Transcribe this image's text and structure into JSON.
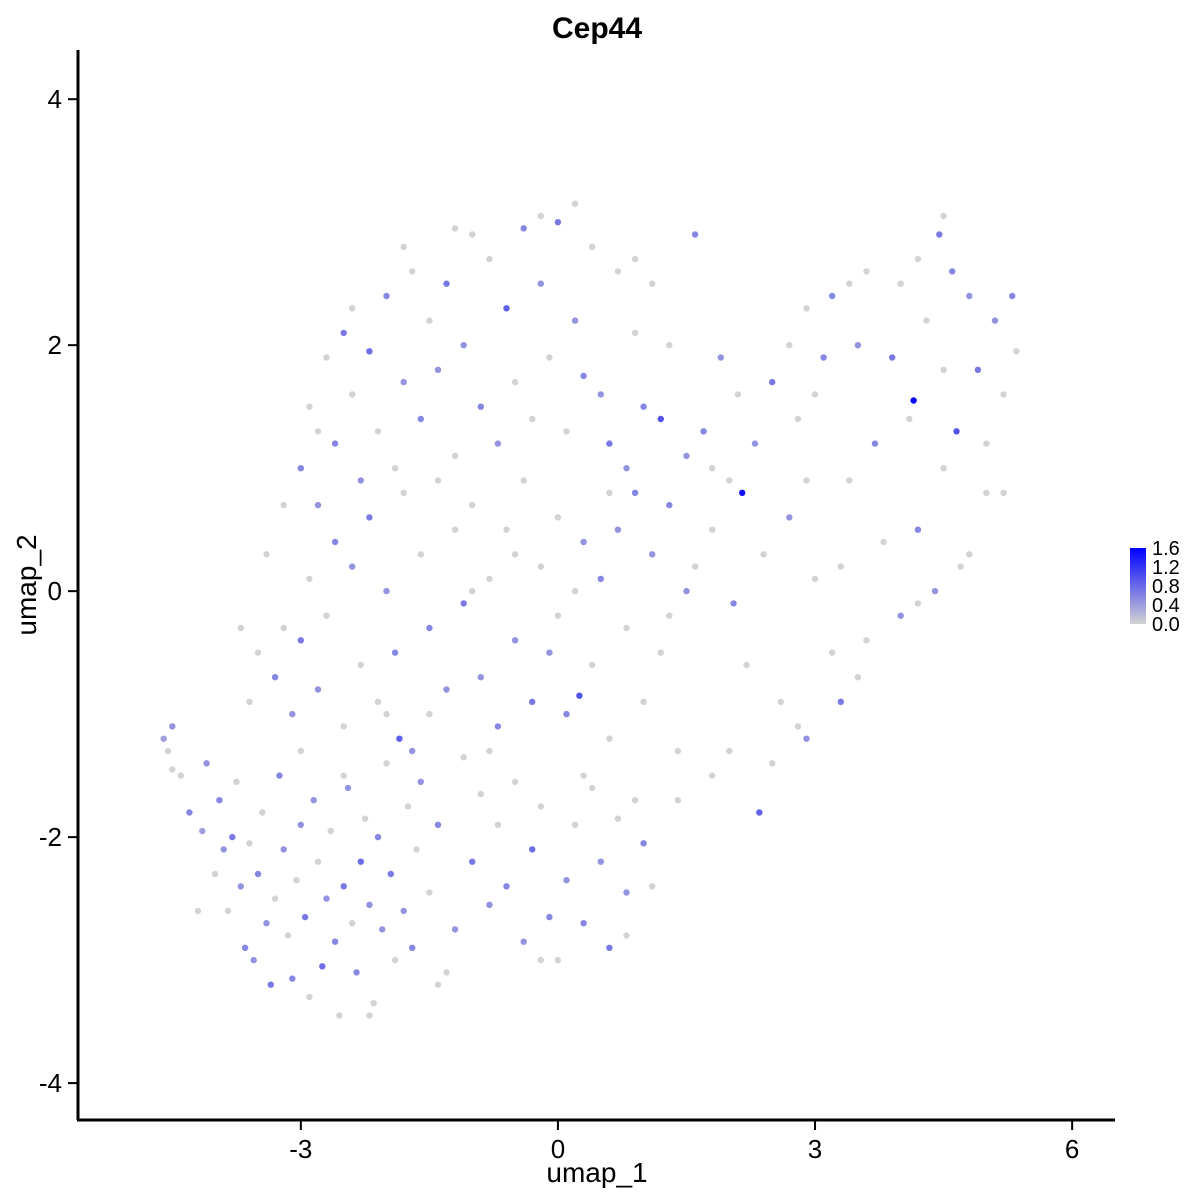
{
  "chart_data": {
    "type": "scatter",
    "title": "Cep44",
    "xlabel": "umap_1",
    "ylabel": "umap_2",
    "xlim": [
      -5.6,
      6.5
    ],
    "ylim": [
      -4.3,
      4.4
    ],
    "x_ticks": [
      -3,
      0,
      3,
      6
    ],
    "x_tick_labels": [
      "-3",
      "0",
      "3",
      "6"
    ],
    "y_ticks": [
      -4,
      -2,
      0,
      2,
      4
    ],
    "y_tick_labels": [
      "-4",
      "-2",
      "0",
      "2",
      "4"
    ],
    "grid": false,
    "legend": {
      "placement": "right",
      "type": "colorbar",
      "labels": [
        "1.6",
        "1.2",
        "0.8",
        "0.4",
        "0.0"
      ],
      "min": 0.0,
      "max": 1.65,
      "color_low": "#d3d3d3",
      "color_high": "#0000ff"
    },
    "point_colors": {
      "low": "#d3d3d3",
      "high": "#0000ff"
    },
    "points": [
      [
        -4.6,
        -1.2,
        0.4
      ],
      [
        -4.55,
        -1.3,
        0.0
      ],
      [
        -4.5,
        -1.1,
        0.5
      ],
      [
        -4.4,
        -1.5,
        0.0
      ],
      [
        -4.3,
        -1.8,
        0.6
      ],
      [
        -4.15,
        -1.95,
        0.4
      ],
      [
        -4.1,
        -1.4,
        0.5
      ],
      [
        -4.0,
        -2.3,
        0.0
      ],
      [
        -3.95,
        -1.7,
        0.6
      ],
      [
        -3.9,
        -2.1,
        0.5
      ],
      [
        -3.85,
        -2.6,
        0.0
      ],
      [
        -3.8,
        -2.0,
        0.7
      ],
      [
        -3.75,
        -1.55,
        0.0
      ],
      [
        -3.7,
        -2.4,
        0.5
      ],
      [
        -3.65,
        -2.9,
        0.6
      ],
      [
        -3.6,
        -2.05,
        0.0
      ],
      [
        -3.55,
        -3.0,
        0.5
      ],
      [
        -3.5,
        -2.3,
        0.6
      ],
      [
        -3.45,
        -1.8,
        0.0
      ],
      [
        -3.4,
        -2.7,
        0.5
      ],
      [
        -3.35,
        -3.2,
        0.7
      ],
      [
        -3.3,
        -2.5,
        0.0
      ],
      [
        -3.25,
        -1.5,
        0.6
      ],
      [
        -3.2,
        -2.1,
        0.5
      ],
      [
        -3.15,
        -2.8,
        0.0
      ],
      [
        -3.1,
        -3.15,
        0.6
      ],
      [
        -3.05,
        -2.35,
        0.0
      ],
      [
        -3.0,
        -1.9,
        0.5
      ],
      [
        -2.95,
        -2.65,
        0.7
      ],
      [
        -2.9,
        -3.3,
        0.0
      ],
      [
        -2.85,
        -1.7,
        0.5
      ],
      [
        -2.8,
        -2.2,
        0.0
      ],
      [
        -2.75,
        -3.05,
        0.8
      ],
      [
        -2.7,
        -2.5,
        0.5
      ],
      [
        -2.65,
        -1.95,
        0.0
      ],
      [
        -2.6,
        -2.85,
        0.6
      ],
      [
        -2.55,
        -3.45,
        0.0
      ],
      [
        -2.5,
        -2.4,
        0.7
      ],
      [
        -2.45,
        -1.6,
        0.5
      ],
      [
        -2.4,
        -2.7,
        0.0
      ],
      [
        -2.35,
        -3.1,
        0.6
      ],
      [
        -2.3,
        -2.2,
        0.8
      ],
      [
        -2.25,
        -1.85,
        0.0
      ],
      [
        -2.2,
        -2.55,
        0.5
      ],
      [
        -2.15,
        -3.35,
        0.0
      ],
      [
        -2.1,
        -2.0,
        0.6
      ],
      [
        -2.05,
        -2.75,
        0.5
      ],
      [
        -2.0,
        -1.4,
        0.0
      ],
      [
        -1.95,
        -2.3,
        0.7
      ],
      [
        -1.9,
        -3.0,
        0.0
      ],
      [
        -1.85,
        -1.2,
        0.9
      ],
      [
        -1.8,
        -2.6,
        0.5
      ],
      [
        -1.75,
        -1.75,
        0.0
      ],
      [
        -1.7,
        -2.9,
        0.6
      ],
      [
        -1.65,
        -2.1,
        0.0
      ],
      [
        -1.6,
        -1.55,
        0.5
      ],
      [
        -1.5,
        -2.45,
        0.0
      ],
      [
        -1.4,
        -1.9,
        0.6
      ],
      [
        -1.3,
        -3.1,
        0.0
      ],
      [
        -1.2,
        -2.75,
        0.5
      ],
      [
        -1.1,
        -1.35,
        0.0
      ],
      [
        -1.0,
        -2.2,
        0.7
      ],
      [
        -0.9,
        -1.65,
        0.0
      ],
      [
        -0.8,
        -2.55,
        0.5
      ],
      [
        -0.7,
        -1.9,
        0.0
      ],
      [
        -0.6,
        -2.4,
        0.6
      ],
      [
        -0.5,
        -1.55,
        0.0
      ],
      [
        -0.4,
        -2.85,
        0.5
      ],
      [
        -0.3,
        -2.1,
        0.8
      ],
      [
        -0.2,
        -1.75,
        0.0
      ],
      [
        -0.1,
        -2.65,
        0.6
      ],
      [
        0.0,
        -3.0,
        0.0
      ],
      [
        0.1,
        -2.35,
        0.5
      ],
      [
        0.2,
        -1.9,
        0.0
      ],
      [
        0.3,
        -2.7,
        0.6
      ],
      [
        0.4,
        -1.6,
        0.0
      ],
      [
        0.5,
        -2.2,
        0.5
      ],
      [
        0.6,
        -2.9,
        0.7
      ],
      [
        0.7,
        -1.85,
        0.0
      ],
      [
        0.8,
        -2.45,
        0.5
      ],
      [
        0.9,
        -1.7,
        0.0
      ],
      [
        1.0,
        -2.05,
        0.6
      ],
      [
        -3.3,
        -0.7,
        0.6
      ],
      [
        -3.2,
        -0.3,
        0.0
      ],
      [
        -3.1,
        -1.0,
        0.5
      ],
      [
        -3.0,
        -0.4,
        0.7
      ],
      [
        -2.9,
        0.1,
        0.0
      ],
      [
        -2.8,
        -0.8,
        0.5
      ],
      [
        -2.7,
        -0.2,
        0.0
      ],
      [
        -2.6,
        0.4,
        0.6
      ],
      [
        -2.5,
        -1.1,
        0.0
      ],
      [
        -2.4,
        0.2,
        0.5
      ],
      [
        -2.3,
        -0.6,
        0.0
      ],
      [
        -2.2,
        0.6,
        0.7
      ],
      [
        -2.1,
        -0.9,
        0.0
      ],
      [
        -2.0,
        0.0,
        0.5
      ],
      [
        -1.9,
        -0.5,
        0.6
      ],
      [
        -1.8,
        0.8,
        0.0
      ],
      [
        -1.7,
        -1.3,
        0.5
      ],
      [
        -1.6,
        0.3,
        0.0
      ],
      [
        -1.5,
        -0.3,
        0.6
      ],
      [
        -1.4,
        0.9,
        0.0
      ],
      [
        -1.3,
        -0.8,
        0.5
      ],
      [
        -1.2,
        0.5,
        0.0
      ],
      [
        -1.1,
        -0.1,
        0.7
      ],
      [
        -1.0,
        0.7,
        0.0
      ],
      [
        -0.9,
        -0.7,
        0.5
      ],
      [
        -0.8,
        0.1,
        0.0
      ],
      [
        -0.7,
        -1.1,
        0.6
      ],
      [
        -0.6,
        0.5,
        0.0
      ],
      [
        -0.5,
        -0.4,
        0.5
      ],
      [
        -0.4,
        0.9,
        0.0
      ],
      [
        -0.3,
        -0.9,
        0.7
      ],
      [
        -0.2,
        0.2,
        0.0
      ],
      [
        -0.1,
        -0.5,
        0.5
      ],
      [
        0.0,
        0.6,
        0.0
      ],
      [
        0.1,
        -1.0,
        0.6
      ],
      [
        0.2,
        0.0,
        0.0
      ],
      [
        0.25,
        -0.85,
        1.0
      ],
      [
        0.3,
        0.4,
        0.5
      ],
      [
        0.4,
        -0.6,
        0.0
      ],
      [
        0.5,
        0.1,
        0.6
      ],
      [
        0.6,
        -1.2,
        0.0
      ],
      [
        0.7,
        0.5,
        0.5
      ],
      [
        0.8,
        -0.3,
        0.0
      ],
      [
        0.9,
        0.8,
        0.6
      ],
      [
        1.0,
        -0.9,
        0.0
      ],
      [
        1.1,
        0.3,
        0.5
      ],
      [
        1.2,
        -0.5,
        0.0
      ],
      [
        1.3,
        0.7,
        0.6
      ],
      [
        1.4,
        -1.3,
        0.0
      ],
      [
        1.5,
        0.0,
        0.5
      ],
      [
        -3.0,
        1.0,
        0.6
      ],
      [
        -2.9,
        1.5,
        0.0
      ],
      [
        -2.8,
        0.7,
        0.5
      ],
      [
        -2.7,
        1.9,
        0.0
      ],
      [
        -2.6,
        1.2,
        0.6
      ],
      [
        -2.5,
        2.1,
        0.7
      ],
      [
        -2.4,
        1.6,
        0.0
      ],
      [
        -2.3,
        0.9,
        0.5
      ],
      [
        -2.2,
        1.95,
        0.8
      ],
      [
        -2.1,
        1.3,
        0.0
      ],
      [
        -2.0,
        2.4,
        0.6
      ],
      [
        -1.9,
        1.0,
        0.0
      ],
      [
        -1.8,
        1.7,
        0.5
      ],
      [
        -1.7,
        2.6,
        0.0
      ],
      [
        -1.6,
        1.4,
        0.6
      ],
      [
        -1.5,
        2.2,
        0.0
      ],
      [
        -1.4,
        1.8,
        0.5
      ],
      [
        -1.3,
        2.5,
        0.7
      ],
      [
        -1.2,
        1.1,
        0.0
      ],
      [
        -1.1,
        2.0,
        0.5
      ],
      [
        -1.0,
        2.9,
        0.0
      ],
      [
        -0.9,
        1.5,
        0.6
      ],
      [
        -0.8,
        2.7,
        0.0
      ],
      [
        -0.7,
        1.2,
        0.5
      ],
      [
        -0.6,
        2.3,
        0.9
      ],
      [
        -0.5,
        1.7,
        0.0
      ],
      [
        -0.4,
        2.95,
        0.6
      ],
      [
        -0.3,
        1.4,
        0.0
      ],
      [
        -0.2,
        2.5,
        0.5
      ],
      [
        -0.1,
        1.9,
        0.0
      ],
      [
        0.0,
        3.0,
        0.7
      ],
      [
        0.1,
        1.3,
        0.0
      ],
      [
        0.2,
        2.2,
        0.5
      ],
      [
        0.3,
        1.75,
        0.6
      ],
      [
        0.4,
        2.8,
        0.0
      ],
      [
        0.5,
        1.6,
        0.5
      ],
      [
        0.6,
        1.2,
        0.7
      ],
      [
        0.7,
        2.6,
        0.0
      ],
      [
        0.8,
        1.0,
        0.5
      ],
      [
        0.9,
        2.1,
        0.0
      ],
      [
        1.0,
        1.5,
        0.6
      ],
      [
        1.2,
        1.4,
        1.0
      ],
      [
        1.3,
        2.0,
        0.0
      ],
      [
        1.5,
        1.1,
        0.5
      ],
      [
        1.6,
        0.2,
        0.0
      ],
      [
        1.7,
        1.3,
        0.6
      ],
      [
        1.8,
        0.5,
        0.0
      ],
      [
        1.9,
        1.9,
        0.5
      ],
      [
        2.0,
        0.9,
        0.0
      ],
      [
        2.05,
        -0.1,
        0.6
      ],
      [
        2.1,
        1.6,
        0.0
      ],
      [
        2.15,
        0.8,
        1.5
      ],
      [
        2.2,
        -0.6,
        0.0
      ],
      [
        2.3,
        1.2,
        0.5
      ],
      [
        2.35,
        -1.8,
        0.9
      ],
      [
        2.4,
        0.3,
        0.0
      ],
      [
        2.5,
        1.7,
        0.7
      ],
      [
        2.6,
        -0.9,
        0.0
      ],
      [
        2.7,
        0.6,
        0.5
      ],
      [
        2.8,
        1.4,
        0.0
      ],
      [
        2.9,
        -1.2,
        0.5
      ],
      [
        3.0,
        0.1,
        0.0
      ],
      [
        3.1,
        1.9,
        0.6
      ],
      [
        3.2,
        -0.5,
        0.0
      ],
      [
        3.3,
        -0.9,
        0.7
      ],
      [
        3.4,
        0.9,
        0.0
      ],
      [
        3.5,
        2.0,
        0.5
      ],
      [
        3.6,
        -0.4,
        0.0
      ],
      [
        3.7,
        1.2,
        0.6
      ],
      [
        3.8,
        0.4,
        0.0
      ],
      [
        3.9,
        1.9,
        0.7
      ],
      [
        4.0,
        -0.2,
        0.5
      ],
      [
        4.1,
        1.4,
        0.0
      ],
      [
        4.15,
        1.55,
        1.6
      ],
      [
        4.2,
        0.5,
        0.6
      ],
      [
        4.3,
        2.2,
        0.0
      ],
      [
        4.4,
        0.0,
        0.5
      ],
      [
        4.45,
        2.9,
        0.7
      ],
      [
        4.5,
        1.0,
        0.0
      ],
      [
        4.6,
        2.6,
        0.6
      ],
      [
        4.65,
        1.3,
        1.0
      ],
      [
        4.7,
        0.2,
        0.0
      ],
      [
        4.8,
        2.4,
        0.5
      ],
      [
        4.9,
        1.8,
        0.7
      ],
      [
        5.0,
        0.8,
        0.0
      ],
      [
        5.1,
        2.2,
        0.5
      ],
      [
        5.2,
        1.6,
        0.0
      ],
      [
        5.3,
        2.4,
        0.6
      ],
      [
        5.35,
        1.95,
        0.0
      ],
      [
        3.2,
        2.4,
        0.6
      ],
      [
        3.4,
        2.5,
        0.0
      ],
      [
        3.0,
        1.6,
        0.0
      ],
      [
        2.7,
        2.0,
        0.0
      ],
      [
        2.9,
        2.3,
        0.0
      ],
      [
        3.6,
        2.6,
        0.0
      ],
      [
        4.0,
        2.5,
        0.0
      ],
      [
        4.2,
        2.7,
        0.0
      ],
      [
        4.5,
        3.05,
        0.0
      ],
      [
        -3.7,
        -0.3,
        0.0
      ],
      [
        -3.5,
        -0.5,
        0.0
      ],
      [
        -3.6,
        -0.9,
        0.0
      ],
      [
        -3.4,
        0.3,
        0.0
      ],
      [
        -3.2,
        0.7,
        0.0
      ],
      [
        -2.8,
        1.3,
        0.0
      ],
      [
        -2.4,
        2.3,
        0.0
      ],
      [
        -1.8,
        2.8,
        0.0
      ],
      [
        -1.2,
        2.95,
        0.0
      ],
      [
        -0.2,
        3.05,
        0.0
      ],
      [
        0.2,
        3.15,
        0.0
      ],
      [
        0.9,
        2.7,
        0.0
      ],
      [
        1.1,
        2.5,
        0.0
      ],
      [
        1.6,
        2.9,
        0.6
      ],
      [
        -4.5,
        -1.45,
        0.0
      ],
      [
        -4.2,
        -2.6,
        0.0
      ],
      [
        -2.2,
        -3.45,
        0.0
      ],
      [
        -1.4,
        -3.2,
        0.0
      ],
      [
        -0.2,
        -3.0,
        0.0
      ],
      [
        0.8,
        -2.8,
        0.0
      ],
      [
        1.1,
        -2.4,
        0.0
      ],
      [
        1.4,
        -1.7,
        0.0
      ],
      [
        1.8,
        -1.5,
        0.0
      ],
      [
        2.0,
        -1.3,
        0.0
      ],
      [
        2.5,
        -1.4,
        0.0
      ],
      [
        2.8,
        -1.1,
        0.0
      ],
      [
        3.5,
        -0.7,
        0.0
      ],
      [
        4.2,
        -0.1,
        0.0
      ],
      [
        4.8,
        0.3,
        0.0
      ],
      [
        5.2,
        0.8,
        0.0
      ],
      [
        5.0,
        1.2,
        0.0
      ],
      [
        -1.0,
        0.0,
        0.0
      ],
      [
        -0.5,
        0.3,
        0.0
      ],
      [
        0.0,
        -0.2,
        0.0
      ],
      [
        0.6,
        0.8,
        0.0
      ],
      [
        1.8,
        1.0,
        0.0
      ],
      [
        -1.5,
        -1.0,
        0.0
      ],
      [
        -2.5,
        -1.5,
        0.0
      ],
      [
        -3.0,
        -1.3,
        0.0
      ],
      [
        -2.0,
        -1.0,
        0.0
      ],
      [
        -0.8,
        -1.3,
        0.0
      ],
      [
        0.3,
        -1.5,
        0.0
      ],
      [
        1.3,
        -0.2,
        0.0
      ],
      [
        2.9,
        0.9,
        0.0
      ],
      [
        3.3,
        0.2,
        0.0
      ],
      [
        4.5,
        1.8,
        0.0
      ]
    ]
  }
}
